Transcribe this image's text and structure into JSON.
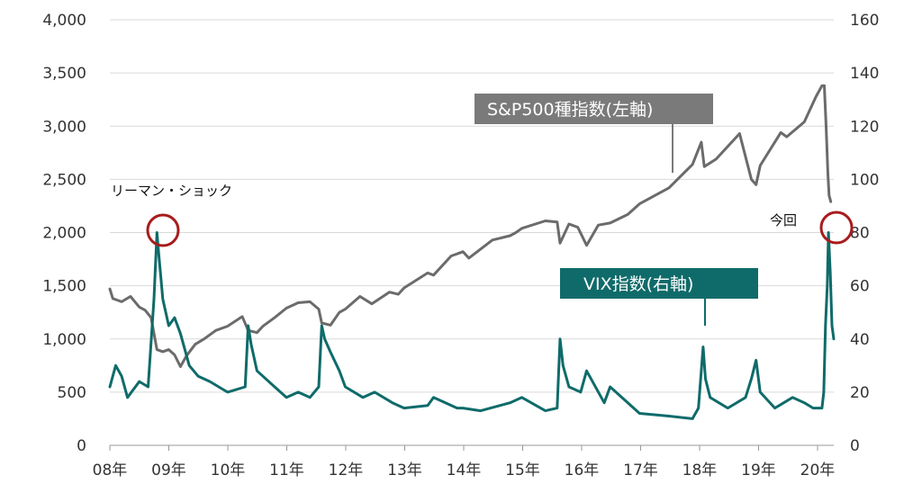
{
  "chart_data": {
    "type": "line",
    "dual_axis": true,
    "x_ticks": [
      "08年",
      "09年",
      "10年",
      "11年",
      "12年",
      "13年",
      "14年",
      "15年",
      "16年",
      "17年",
      "18年",
      "19年",
      "20年"
    ],
    "x_range": [
      2008.0,
      2020.3
    ],
    "left_axis": {
      "ticks": [
        "0",
        "500",
        "1,000",
        "1,500",
        "2,000",
        "2,500",
        "3,000",
        "3,500",
        "4,000"
      ],
      "ylim": [
        0,
        4000
      ]
    },
    "right_axis": {
      "ticks": [
        "0",
        "20",
        "40",
        "60",
        "80",
        "100",
        "120",
        "140",
        "160"
      ],
      "ylim": [
        0,
        160
      ]
    },
    "grid": true,
    "series": [
      {
        "name": "S&P500種指数(左軸)",
        "axis": "left",
        "color": "#6b6b6b",
        "x": [
          2008.0,
          2008.05,
          2008.2,
          2008.35,
          2008.5,
          2008.6,
          2008.7,
          2008.8,
          2008.9,
          2009.0,
          2009.1,
          2009.2,
          2009.3,
          2009.45,
          2009.6,
          2009.8,
          2010.0,
          2010.25,
          2010.35,
          2010.5,
          2010.6,
          2010.8,
          2011.0,
          2011.2,
          2011.4,
          2011.55,
          2011.6,
          2011.75,
          2011.9,
          2012.0,
          2012.25,
          2012.45,
          2012.75,
          2012.9,
          2013.0,
          2013.4,
          2013.5,
          2013.8,
          2014.0,
          2014.1,
          2014.5,
          2014.8,
          2014.9,
          2015.0,
          2015.4,
          2015.6,
          2015.65,
          2015.8,
          2015.95,
          2016.1,
          2016.3,
          2016.5,
          2016.8,
          2017.0,
          2017.5,
          2017.9,
          2018.05,
          2018.1,
          2018.3,
          2018.7,
          2018.9,
          2018.98,
          2019.05,
          2019.4,
          2019.5,
          2019.8,
          2020.0,
          2020.1,
          2020.14,
          2020.17,
          2020.2,
          2020.22,
          2020.25
        ],
        "y": [
          1470,
          1380,
          1350,
          1400,
          1300,
          1270,
          1200,
          900,
          880,
          900,
          850,
          740,
          840,
          950,
          1000,
          1080,
          1120,
          1210,
          1080,
          1060,
          1120,
          1200,
          1290,
          1340,
          1350,
          1280,
          1150,
          1130,
          1250,
          1280,
          1400,
          1330,
          1440,
          1420,
          1480,
          1620,
          1600,
          1780,
          1820,
          1760,
          1930,
          1970,
          2000,
          2040,
          2110,
          2100,
          1900,
          2080,
          2050,
          1880,
          2070,
          2090,
          2170,
          2270,
          2420,
          2640,
          2850,
          2620,
          2690,
          2930,
          2500,
          2450,
          2630,
          2940,
          2900,
          3040,
          3280,
          3380,
          3380,
          3000,
          2550,
          2350,
          2290
        ]
      },
      {
        "name": "VIX指数(右軸)",
        "axis": "right",
        "color": "#0f6b6a",
        "x": [
          2008.0,
          2008.1,
          2008.2,
          2008.3,
          2008.5,
          2008.65,
          2008.75,
          2008.8,
          2008.83,
          2008.9,
          2009.0,
          2009.1,
          2009.2,
          2009.35,
          2009.5,
          2009.7,
          2010.0,
          2010.3,
          2010.35,
          2010.4,
          2010.5,
          2010.8,
          2011.0,
          2011.2,
          2011.4,
          2011.55,
          2011.6,
          2011.65,
          2011.75,
          2011.9,
          2012.0,
          2012.3,
          2012.5,
          2012.8,
          2013.0,
          2013.4,
          2013.5,
          2013.9,
          2014.0,
          2014.3,
          2014.8,
          2015.0,
          2015.4,
          2015.6,
          2015.65,
          2015.7,
          2015.8,
          2016.0,
          2016.1,
          2016.4,
          2016.5,
          2016.9,
          2017.0,
          2017.5,
          2017.9,
          2018.0,
          2018.08,
          2018.12,
          2018.2,
          2018.5,
          2018.8,
          2018.9,
          2018.98,
          2019.05,
          2019.3,
          2019.6,
          2019.8,
          2019.95,
          2020.1,
          2020.13,
          2020.16,
          2020.19,
          2020.21,
          2020.24,
          2020.27,
          2020.3
        ],
        "y": [
          22,
          30,
          26,
          18,
          24,
          22,
          55,
          80,
          72,
          55,
          45,
          48,
          42,
          30,
          26,
          24,
          20,
          22,
          45,
          38,
          28,
          22,
          18,
          20,
          18,
          22,
          45,
          40,
          35,
          28,
          22,
          18,
          20,
          16,
          14,
          15,
          18,
          14,
          14,
          13,
          16,
          18,
          13,
          14,
          40,
          30,
          22,
          20,
          28,
          16,
          22,
          14,
          12,
          11,
          10,
          14,
          37,
          25,
          18,
          14,
          18,
          25,
          32,
          20,
          14,
          18,
          16,
          14,
          14,
          20,
          45,
          60,
          80,
          65,
          45,
          40
        ]
      }
    ]
  },
  "labels": {
    "sp500_label": "S&P500種指数(左軸)",
    "vix_label": "VIX指数(右軸)",
    "lehman_label": "リーマン・ショック",
    "now_label": "今回"
  },
  "colors": {
    "sp500": "#6b6b6b",
    "vix": "#0f6b6a",
    "sp500_box": "#7a7a7a",
    "vix_box": "#0f6b6a",
    "circle": "#a81c1c",
    "grid": "#d9d9d9"
  }
}
